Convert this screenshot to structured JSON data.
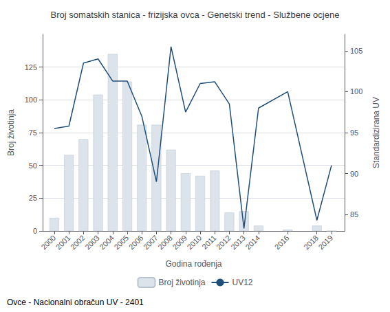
{
  "chart_data": {
    "type": "bar",
    "title": "Broj somatskih stanica - frizijska ovca - Genetski trend - Službene ocjene",
    "xlabel": "Godina rođenja",
    "ylabel": "Broj životinja",
    "y2label": "Standardizirana UV",
    "annotations": [
      "Ovce - Nacionalni obračun UV - 2401"
    ],
    "x": [
      2000,
      2001,
      2002,
      2003,
      2004,
      2005,
      2006,
      2007,
      2008,
      2009,
      2010,
      2011,
      2012,
      2013,
      2014,
      2016,
      2018,
      2019
    ],
    "xlim": [
      1999.2,
      2019.9
    ],
    "xticks": [
      2000,
      2001,
      2002,
      2003,
      2004,
      2005,
      2006,
      2007,
      2008,
      2009,
      2010,
      2011,
      2012,
      2013,
      2014,
      2016,
      2018,
      2019
    ],
    "ylim": [
      0,
      150
    ],
    "yticks": [
      0,
      25,
      50,
      75,
      100,
      125
    ],
    "y2lim": [
      83,
      107
    ],
    "y2ticks": [
      85,
      90,
      95,
      100,
      105
    ],
    "grid": true,
    "legend": "bottom",
    "series": [
      {
        "name": "Broj životinja",
        "type": "bar",
        "color": "#dce3eb",
        "values": [
          10,
          58,
          70,
          104,
          135,
          114,
          81,
          81,
          62,
          44,
          42,
          46,
          14,
          15,
          4,
          1,
          4,
          0
        ]
      },
      {
        "name": "UV12",
        "type": "line",
        "axis": "y2",
        "color": "#1f4e79",
        "values": [
          95.5,
          95.8,
          103.5,
          104.0,
          101.3,
          101.3,
          97.0,
          89.0,
          105.5,
          97.5,
          101.0,
          101.2,
          98.5,
          83.3,
          98.0,
          100.0,
          84.3,
          91.0
        ]
      }
    ]
  }
}
